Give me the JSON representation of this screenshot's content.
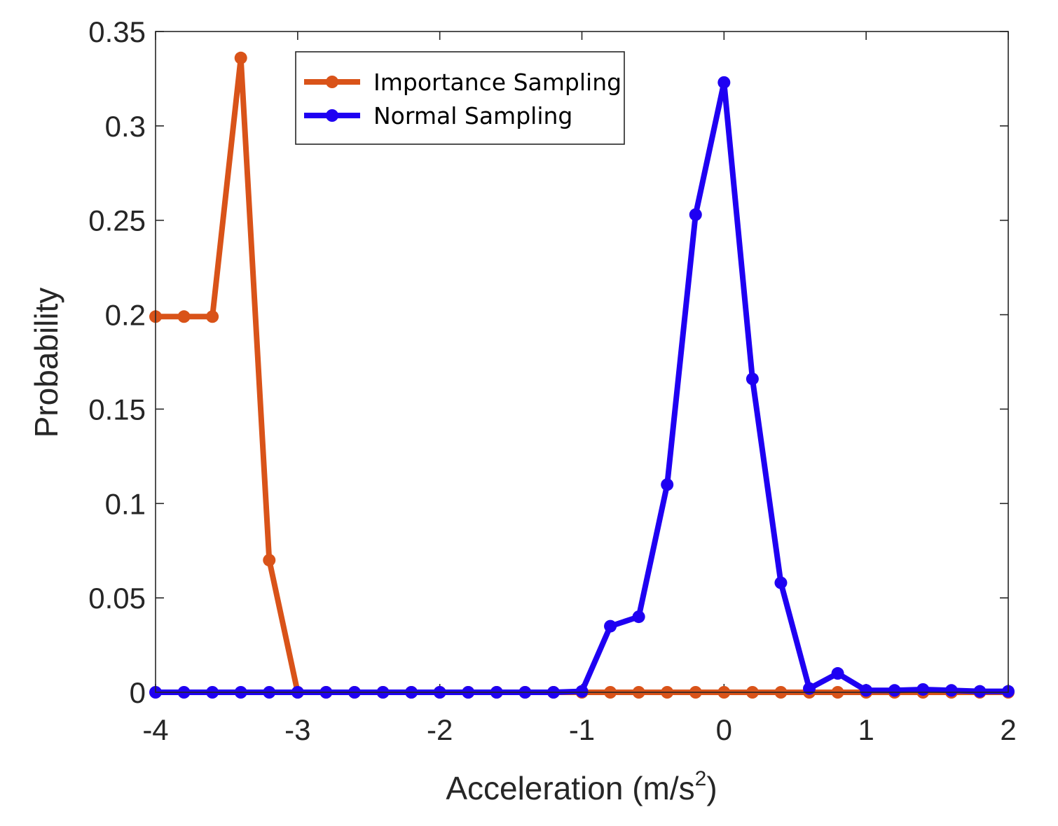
{
  "chart_data": {
    "type": "line",
    "xlabel": "Acceleration (m/s",
    "xlabel_sup": "2",
    "xlabel_close": ")",
    "ylabel": "Probability",
    "xlim": [
      -4,
      2
    ],
    "ylim": [
      0,
      0.35
    ],
    "x_ticks": [
      "-4",
      "-3",
      "-2",
      "-1",
      "0",
      "1",
      "2"
    ],
    "y_ticks": [
      "0",
      "0.05",
      "0.1",
      "0.15",
      "0.2",
      "0.25",
      "0.3",
      "0.35"
    ],
    "grid": false,
    "legend_position": "top-left-inside",
    "x": [
      -4.0,
      -3.8,
      -3.6,
      -3.4,
      -3.2,
      -3.0,
      -2.8,
      -2.6,
      -2.4,
      -2.2,
      -2.0,
      -1.8,
      -1.6,
      -1.4,
      -1.2,
      -1.0,
      -0.8,
      -0.6,
      -0.4,
      -0.2,
      0.0,
      0.2,
      0.4,
      0.6,
      0.8,
      1.0,
      1.2,
      1.4,
      1.6,
      1.8,
      2.0
    ],
    "series": [
      {
        "name": "Importance Sampling",
        "color": "#D95319",
        "values": [
          0.199,
          0.199,
          0.199,
          0.336,
          0.07,
          0,
          0,
          0,
          0,
          0,
          0,
          0,
          0,
          0,
          0,
          0,
          0,
          0,
          0,
          0,
          0,
          0,
          0,
          0,
          0,
          0,
          0,
          0,
          0,
          0,
          0
        ]
      },
      {
        "name": "Normal Sampling",
        "color": "#1F00F2",
        "values": [
          0,
          0,
          0,
          0,
          0,
          0,
          0,
          0,
          0,
          0,
          0,
          0,
          0,
          0,
          0,
          0.0005,
          0.035,
          0.04,
          0.11,
          0.253,
          0.323,
          0.166,
          0.058,
          0.002,
          0.01,
          0.001,
          0.001,
          0.0015,
          0.001,
          0.0005,
          0.0005
        ]
      }
    ]
  }
}
